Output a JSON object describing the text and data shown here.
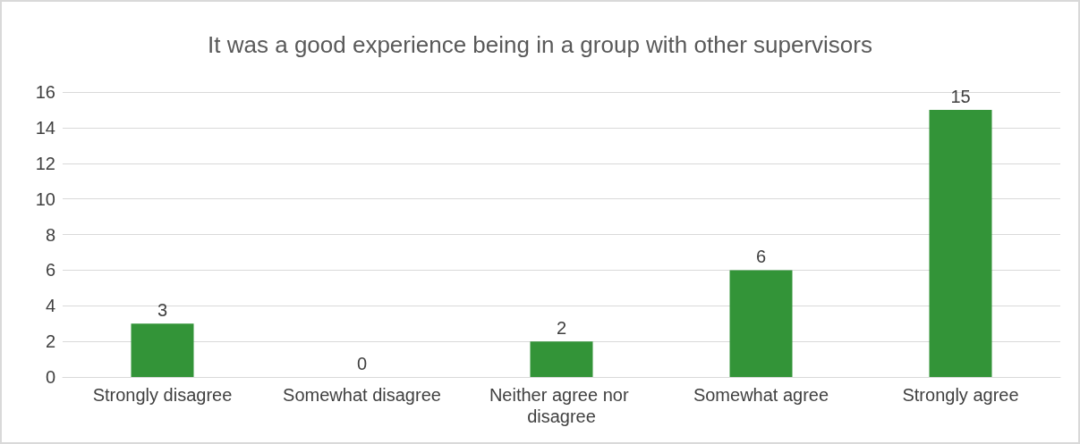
{
  "chart_data": {
    "type": "bar",
    "title": "It was a good experience being in a group with other supervisors",
    "categories": [
      "Strongly disagree",
      "Somewhat disagree",
      "Neither agree nor disagree",
      "Somewhat agree",
      "Strongly agree"
    ],
    "values": [
      3,
      0,
      2,
      6,
      15
    ],
    "color": "#339438",
    "ylim": [
      0,
      16
    ],
    "yticks": [
      0,
      2,
      4,
      6,
      8,
      10,
      12,
      14,
      16
    ],
    "grid": "y",
    "data_labels": true
  }
}
